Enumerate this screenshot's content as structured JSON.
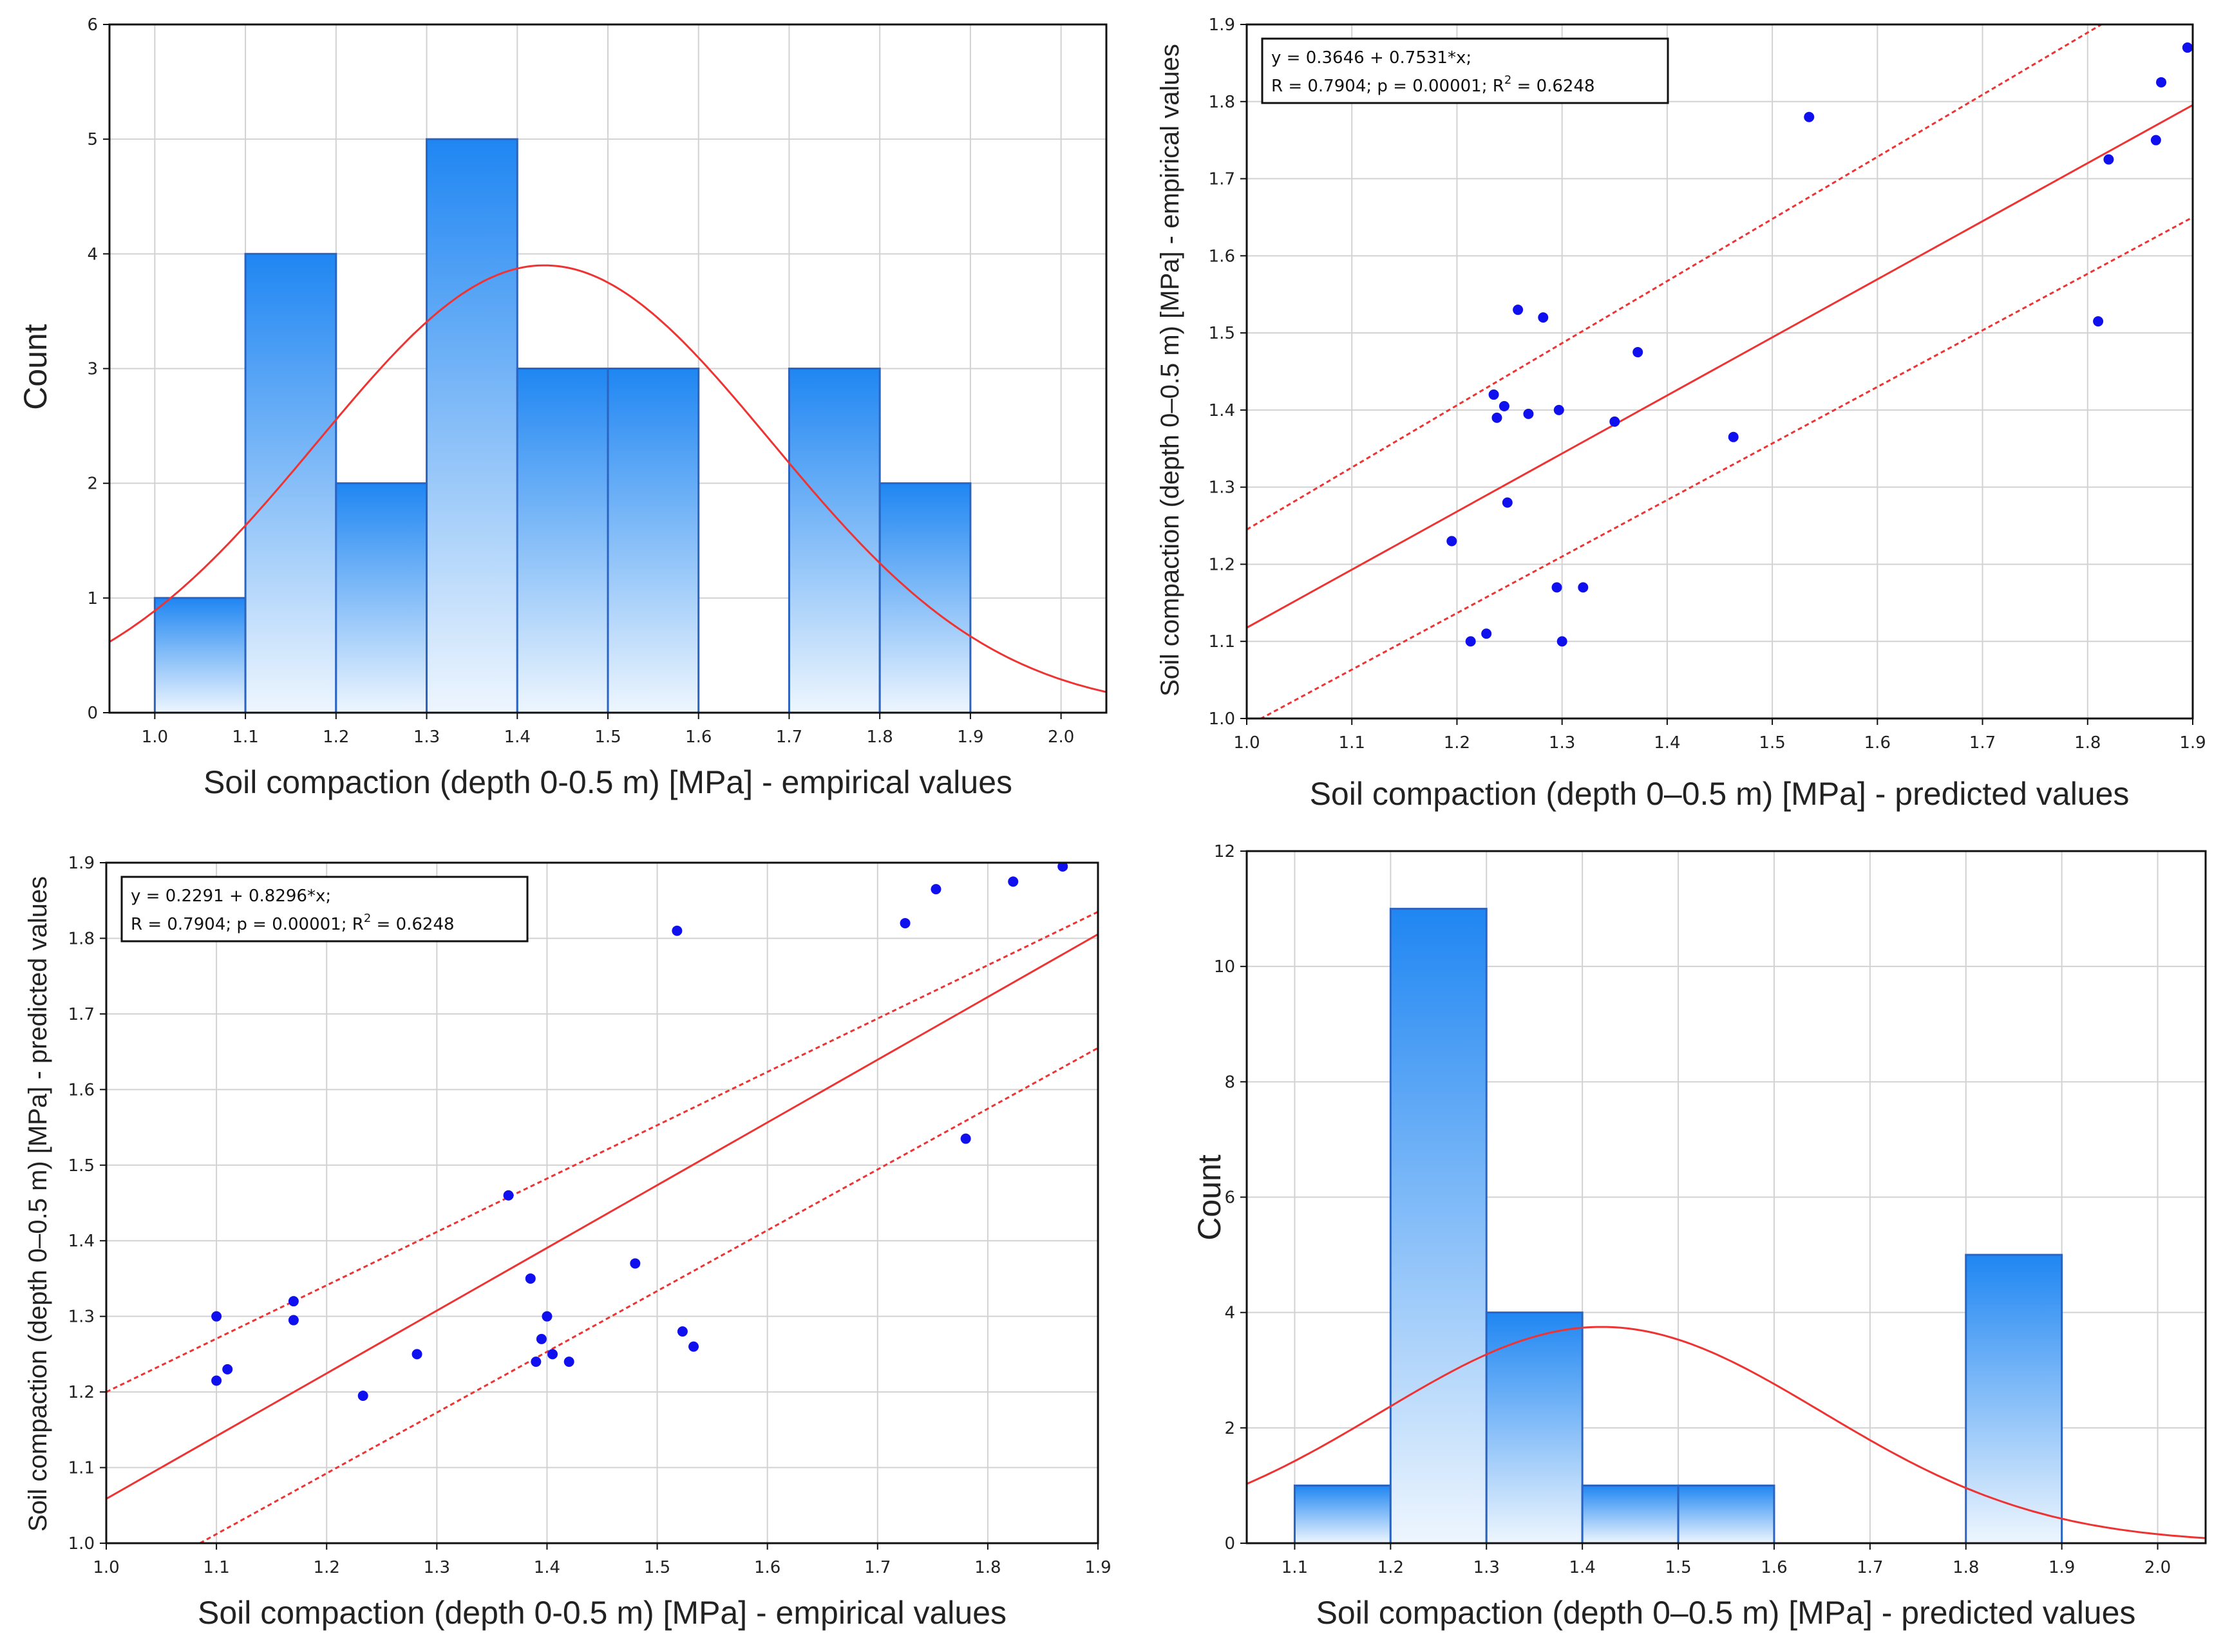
{
  "colors": {
    "bar_top": "#1f86f2",
    "bar_bottom": "#eef6fe",
    "bar_edge": "#2a64c0",
    "fit_line": "#ee3333",
    "point": "#1010ee",
    "grid": "#d2d2d2"
  },
  "chart_data": [
    {
      "id": "hist-empirical",
      "type": "bar",
      "xlabel": "Soil compaction (depth 0-0.5 m) [MPa] - empirical values",
      "ylabel": "Count",
      "xlim": [
        0.95,
        2.05
      ],
      "ylim": [
        0,
        6
      ],
      "x_ticks": [
        "1.0",
        "1.1",
        "1.2",
        "1.3",
        "1.4",
        "1.5",
        "1.6",
        "1.7",
        "1.8",
        "1.9",
        "2.0"
      ],
      "y_ticks": [
        "0",
        "1",
        "2",
        "3",
        "4",
        "5",
        "6"
      ],
      "bins": [
        {
          "from": 1.0,
          "to": 1.1,
          "count": 1
        },
        {
          "from": 1.1,
          "to": 1.2,
          "count": 4
        },
        {
          "from": 1.2,
          "to": 1.3,
          "count": 2
        },
        {
          "from": 1.3,
          "to": 1.4,
          "count": 5
        },
        {
          "from": 1.4,
          "to": 1.5,
          "count": 3
        },
        {
          "from": 1.5,
          "to": 1.6,
          "count": 3
        },
        {
          "from": 1.6,
          "to": 1.7,
          "count": 0
        },
        {
          "from": 1.7,
          "to": 1.8,
          "count": 3
        },
        {
          "from": 1.8,
          "to": 1.9,
          "count": 2
        }
      ],
      "normal_fit": {
        "mean": 1.43,
        "sd": 0.25,
        "peak": 3.9
      }
    },
    {
      "id": "scatter-predicted",
      "type": "scatter",
      "xlabel": "Soil compaction (depth 0–0.5 m) [MPa] - predicted values",
      "ylabel": "Soil compaction (depth 0–0.5 m) [MPa] - empirical values",
      "xlim": [
        1.0,
        1.9
      ],
      "ylim": [
        1.0,
        1.9
      ],
      "x_ticks": [
        "1.0",
        "1.1",
        "1.2",
        "1.3",
        "1.4",
        "1.5",
        "1.6",
        "1.7",
        "1.8",
        "1.9"
      ],
      "y_ticks": [
        "1.0",
        "1.1",
        "1.2",
        "1.3",
        "1.4",
        "1.5",
        "1.6",
        "1.7",
        "1.8",
        "1.9"
      ],
      "equation": "y = 0.3646 + 0.7531*x;",
      "stats": "R = 0.7904; p = 0.00001; R",
      "r2_exp": "2",
      "r2_value": " = 0.6248",
      "fit": {
        "intercept": 0.3646,
        "slope": 0.7531
      },
      "band_upper": [
        [
          1.0,
          1.245
        ],
        [
          1.9,
          1.97
        ]
      ],
      "band_lower": [
        [
          1.0,
          0.99
        ],
        [
          1.9,
          1.65
        ]
      ],
      "points": [
        [
          1.195,
          1.23
        ],
        [
          1.213,
          1.1
        ],
        [
          1.228,
          1.11
        ],
        [
          1.235,
          1.42
        ],
        [
          1.238,
          1.39
        ],
        [
          1.245,
          1.405
        ],
        [
          1.248,
          1.28
        ],
        [
          1.258,
          1.53
        ],
        [
          1.268,
          1.395
        ],
        [
          1.282,
          1.52
        ],
        [
          1.295,
          1.17
        ],
        [
          1.297,
          1.4
        ],
        [
          1.3,
          1.1
        ],
        [
          1.32,
          1.17
        ],
        [
          1.35,
          1.385
        ],
        [
          1.372,
          1.475
        ],
        [
          1.463,
          1.365
        ],
        [
          1.535,
          1.78
        ],
        [
          1.81,
          1.515
        ],
        [
          1.82,
          1.725
        ],
        [
          1.865,
          1.75
        ],
        [
          1.87,
          1.825
        ],
        [
          1.895,
          1.87
        ]
      ]
    },
    {
      "id": "scatter-empirical",
      "type": "scatter",
      "xlabel": "Soil compaction (depth 0-0.5 m) [MPa] - empirical values",
      "ylabel": "Soil compaction (depth 0–0.5 m) [MPa] - predicted values",
      "xlim": [
        1.0,
        1.9
      ],
      "ylim": [
        1.0,
        1.9
      ],
      "x_ticks": [
        "1.0",
        "1.1",
        "1.2",
        "1.3",
        "1.4",
        "1.5",
        "1.6",
        "1.7",
        "1.8",
        "1.9"
      ],
      "y_ticks": [
        "1.0",
        "1.1",
        "1.2",
        "1.3",
        "1.4",
        "1.5",
        "1.6",
        "1.7",
        "1.8",
        "1.9"
      ],
      "equation": "y = 0.2291 + 0.8296*x;",
      "stats": "R = 0.7904; p = 0.00001; R",
      "r2_exp": "2",
      "r2_value": " = 0.6248",
      "fit": {
        "intercept": 0.2291,
        "slope": 0.8296
      },
      "band_upper": [
        [
          1.0,
          1.2
        ],
        [
          1.9,
          1.835
        ]
      ],
      "band_lower": [
        [
          1.085,
          1.0
        ],
        [
          1.9,
          1.655
        ]
      ],
      "points": [
        [
          1.1,
          1.3
        ],
        [
          1.1,
          1.215
        ],
        [
          1.11,
          1.23
        ],
        [
          1.17,
          1.32
        ],
        [
          1.17,
          1.295
        ],
        [
          1.233,
          1.195
        ],
        [
          1.282,
          1.25
        ],
        [
          1.365,
          1.46
        ],
        [
          1.385,
          1.35
        ],
        [
          1.39,
          1.24
        ],
        [
          1.395,
          1.27
        ],
        [
          1.4,
          1.3
        ],
        [
          1.405,
          1.25
        ],
        [
          1.42,
          1.24
        ],
        [
          1.48,
          1.37
        ],
        [
          1.518,
          1.81
        ],
        [
          1.523,
          1.28
        ],
        [
          1.533,
          1.26
        ],
        [
          1.725,
          1.82
        ],
        [
          1.753,
          1.865
        ],
        [
          1.78,
          1.535
        ],
        [
          1.823,
          1.875
        ],
        [
          1.868,
          1.895
        ]
      ]
    },
    {
      "id": "hist-predicted",
      "type": "bar",
      "xlabel": "Soil compaction (depth 0–0.5 m) [MPa] - predicted values",
      "ylabel": "Count",
      "xlim": [
        1.05,
        2.05
      ],
      "ylim": [
        0,
        12
      ],
      "x_ticks": [
        "1.1",
        "1.2",
        "1.3",
        "1.4",
        "1.5",
        "1.6",
        "1.7",
        "1.8",
        "1.9",
        "2.0"
      ],
      "y_ticks": [
        "0",
        "2",
        "4",
        "6",
        "8",
        "10",
        "12"
      ],
      "bins": [
        {
          "from": 1.1,
          "to": 1.2,
          "count": 1
        },
        {
          "from": 1.2,
          "to": 1.3,
          "count": 11
        },
        {
          "from": 1.3,
          "to": 1.4,
          "count": 4
        },
        {
          "from": 1.4,
          "to": 1.5,
          "count": 1
        },
        {
          "from": 1.5,
          "to": 1.6,
          "count": 1
        },
        {
          "from": 1.6,
          "to": 1.7,
          "count": 0
        },
        {
          "from": 1.7,
          "to": 1.8,
          "count": 0
        },
        {
          "from": 1.8,
          "to": 1.9,
          "count": 5
        }
      ],
      "normal_fit": {
        "mean": 1.42,
        "sd": 0.23,
        "peak": 3.75
      }
    }
  ]
}
